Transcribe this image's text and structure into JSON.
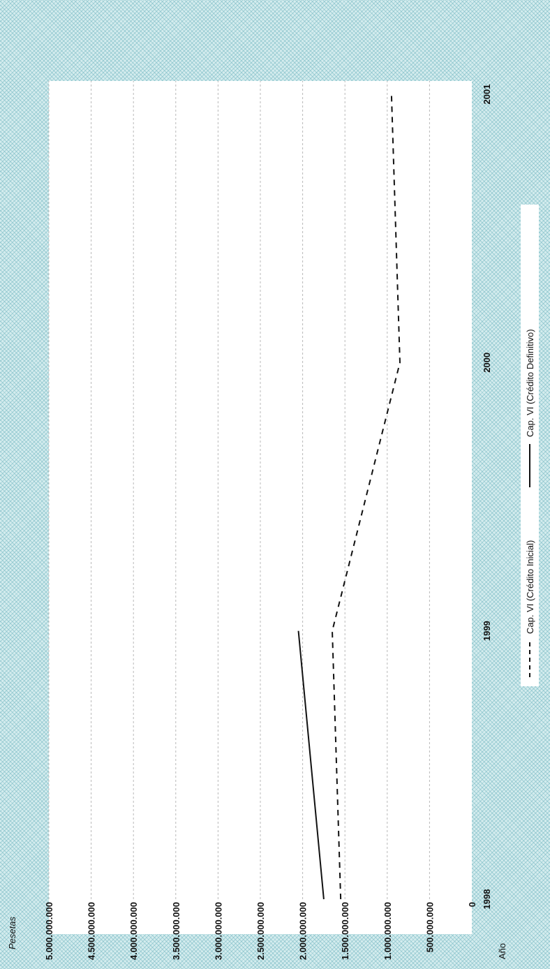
{
  "chart_data": {
    "type": "line",
    "ylabel": "Pesetas",
    "xlabel": "Año",
    "categories": [
      "1998",
      "1999",
      "2000",
      "2001"
    ],
    "ylim": [
      0,
      5000000000
    ],
    "yticks": [
      "0",
      "500.000.000",
      "1.000.000.000",
      "1.500.000.000",
      "2.000.000.000",
      "2.500.000.000",
      "3.000.000.000",
      "3.500.000.000",
      "4.000.000.000",
      "4.500.000.000",
      "5.000.000.000"
    ],
    "grid": true,
    "legend_position": "bottom",
    "series": [
      {
        "name": "Cap. VI (Crédito Inicial)",
        "style": "dashed",
        "color": "#111111",
        "values": [
          1550000000,
          1650000000,
          850000000,
          950000000
        ]
      },
      {
        "name": "Cap. VI (Crédito Definitivo)",
        "style": "solid",
        "color": "#111111",
        "values": [
          1750000000,
          2050000000,
          null,
          null
        ]
      }
    ]
  }
}
